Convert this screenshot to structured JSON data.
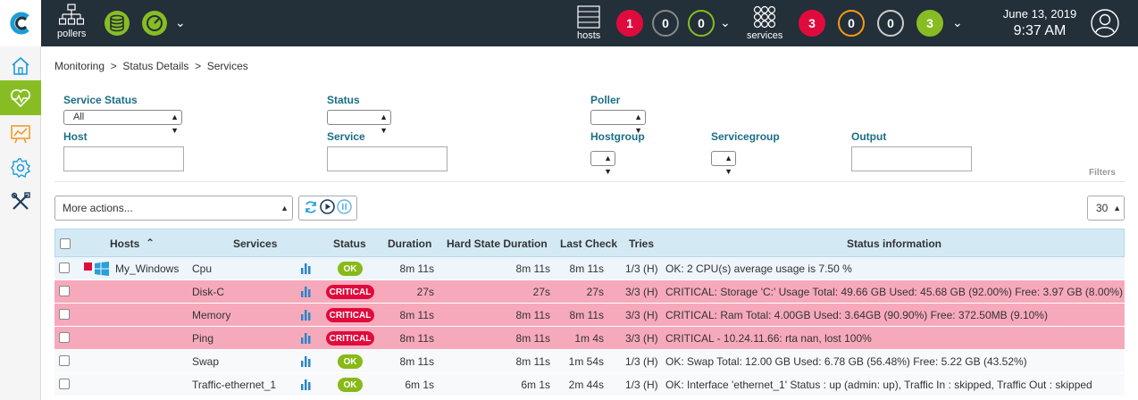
{
  "topbar": {
    "pollers_label": "pollers",
    "hosts_label": "hosts",
    "services_label": "services",
    "hosts_counts": [
      {
        "value": "1",
        "color": "#e00b3d",
        "filled": true
      },
      {
        "value": "0",
        "color": "#888888",
        "filled": false
      },
      {
        "value": "0",
        "color": "#87bd23",
        "filled": false
      }
    ],
    "services_counts": [
      {
        "value": "3",
        "color": "#e00b3d",
        "filled": true
      },
      {
        "value": "0",
        "color": "#ff9913",
        "filled": false
      },
      {
        "value": "0",
        "color": "#cccccc",
        "filled": false
      },
      {
        "value": "3",
        "color": "#87bd23",
        "filled": true
      }
    ],
    "date": "June 13, 2019",
    "time": "9:37 AM"
  },
  "sidebar": [
    {
      "icon": "home-icon"
    },
    {
      "icon": "heartbeat-icon",
      "active": true
    },
    {
      "icon": "chart-icon"
    },
    {
      "icon": "gear-icon"
    },
    {
      "icon": "tools-icon"
    }
  ],
  "breadcrumb": "Monitoring  >  Status Details  >  Services",
  "filters": {
    "service_status_label": "Service Status",
    "service_status_value": "All",
    "status_label": "Status",
    "poller_label": "Poller",
    "host_label": "Host",
    "service_label": "Service",
    "hostgroup_label": "Hostgroup",
    "servicegroup_label": "Servicegroup",
    "output_label": "Output",
    "filters_link": "Filters"
  },
  "actions": {
    "more_actions": "More actions...",
    "per_page": "30"
  },
  "table": {
    "headers": {
      "hosts": "Hosts",
      "services": "Services",
      "status": "Status",
      "duration": "Duration",
      "hard_state_duration": "Hard State Duration",
      "last_check": "Last Check",
      "tries": "Tries",
      "status_information": "Status information"
    },
    "rows": [
      {
        "host": "My_Windows",
        "service": "Cpu",
        "status": "OK",
        "duration": "8m 11s",
        "hard": "8m 11s",
        "last_check": "8m 11s",
        "tries": "1/3 (H)",
        "info": "OK: 2 CPU(s) average usage is 7.50 %"
      },
      {
        "host": "",
        "service": "Disk-C",
        "status": "CRITICAL",
        "duration": "27s",
        "hard": "27s",
        "last_check": "27s",
        "tries": "3/3 (H)",
        "info": "CRITICAL: Storage 'C:' Usage Total: 49.66 GB Used: 45.68 GB (92.00%) Free: 3.97 GB (8.00%)"
      },
      {
        "host": "",
        "service": "Memory",
        "status": "CRITICAL",
        "duration": "8m 11s",
        "hard": "8m 11s",
        "last_check": "8m 11s",
        "tries": "3/3 (H)",
        "info": "CRITICAL: Ram Total: 4.00GB Used: 3.64GB (90.90%) Free: 372.50MB (9.10%)"
      },
      {
        "host": "",
        "service": "Ping",
        "status": "CRITICAL",
        "duration": "8m 11s",
        "hard": "8m 11s",
        "last_check": "1m 4s",
        "tries": "3/3 (H)",
        "info": "CRITICAL - 10.24.11.66: rta nan, lost 100%"
      },
      {
        "host": "",
        "service": "Swap",
        "status": "OK",
        "duration": "8m 11s",
        "hard": "8m 11s",
        "last_check": "1m 54s",
        "tries": "1/3 (H)",
        "info": "OK: Swap Total: 12.00 GB Used: 6.78 GB (56.48%) Free: 5.22 GB (43.52%)"
      },
      {
        "host": "",
        "service": "Traffic-ethernet_1",
        "status": "OK",
        "duration": "6m 1s",
        "hard": "6m 1s",
        "last_check": "2m 44s",
        "tries": "1/3 (H)",
        "info": "OK: Interface 'ethernet_1' Status : up (admin: up), Traffic In : skipped, Traffic Out : skipped"
      }
    ]
  }
}
